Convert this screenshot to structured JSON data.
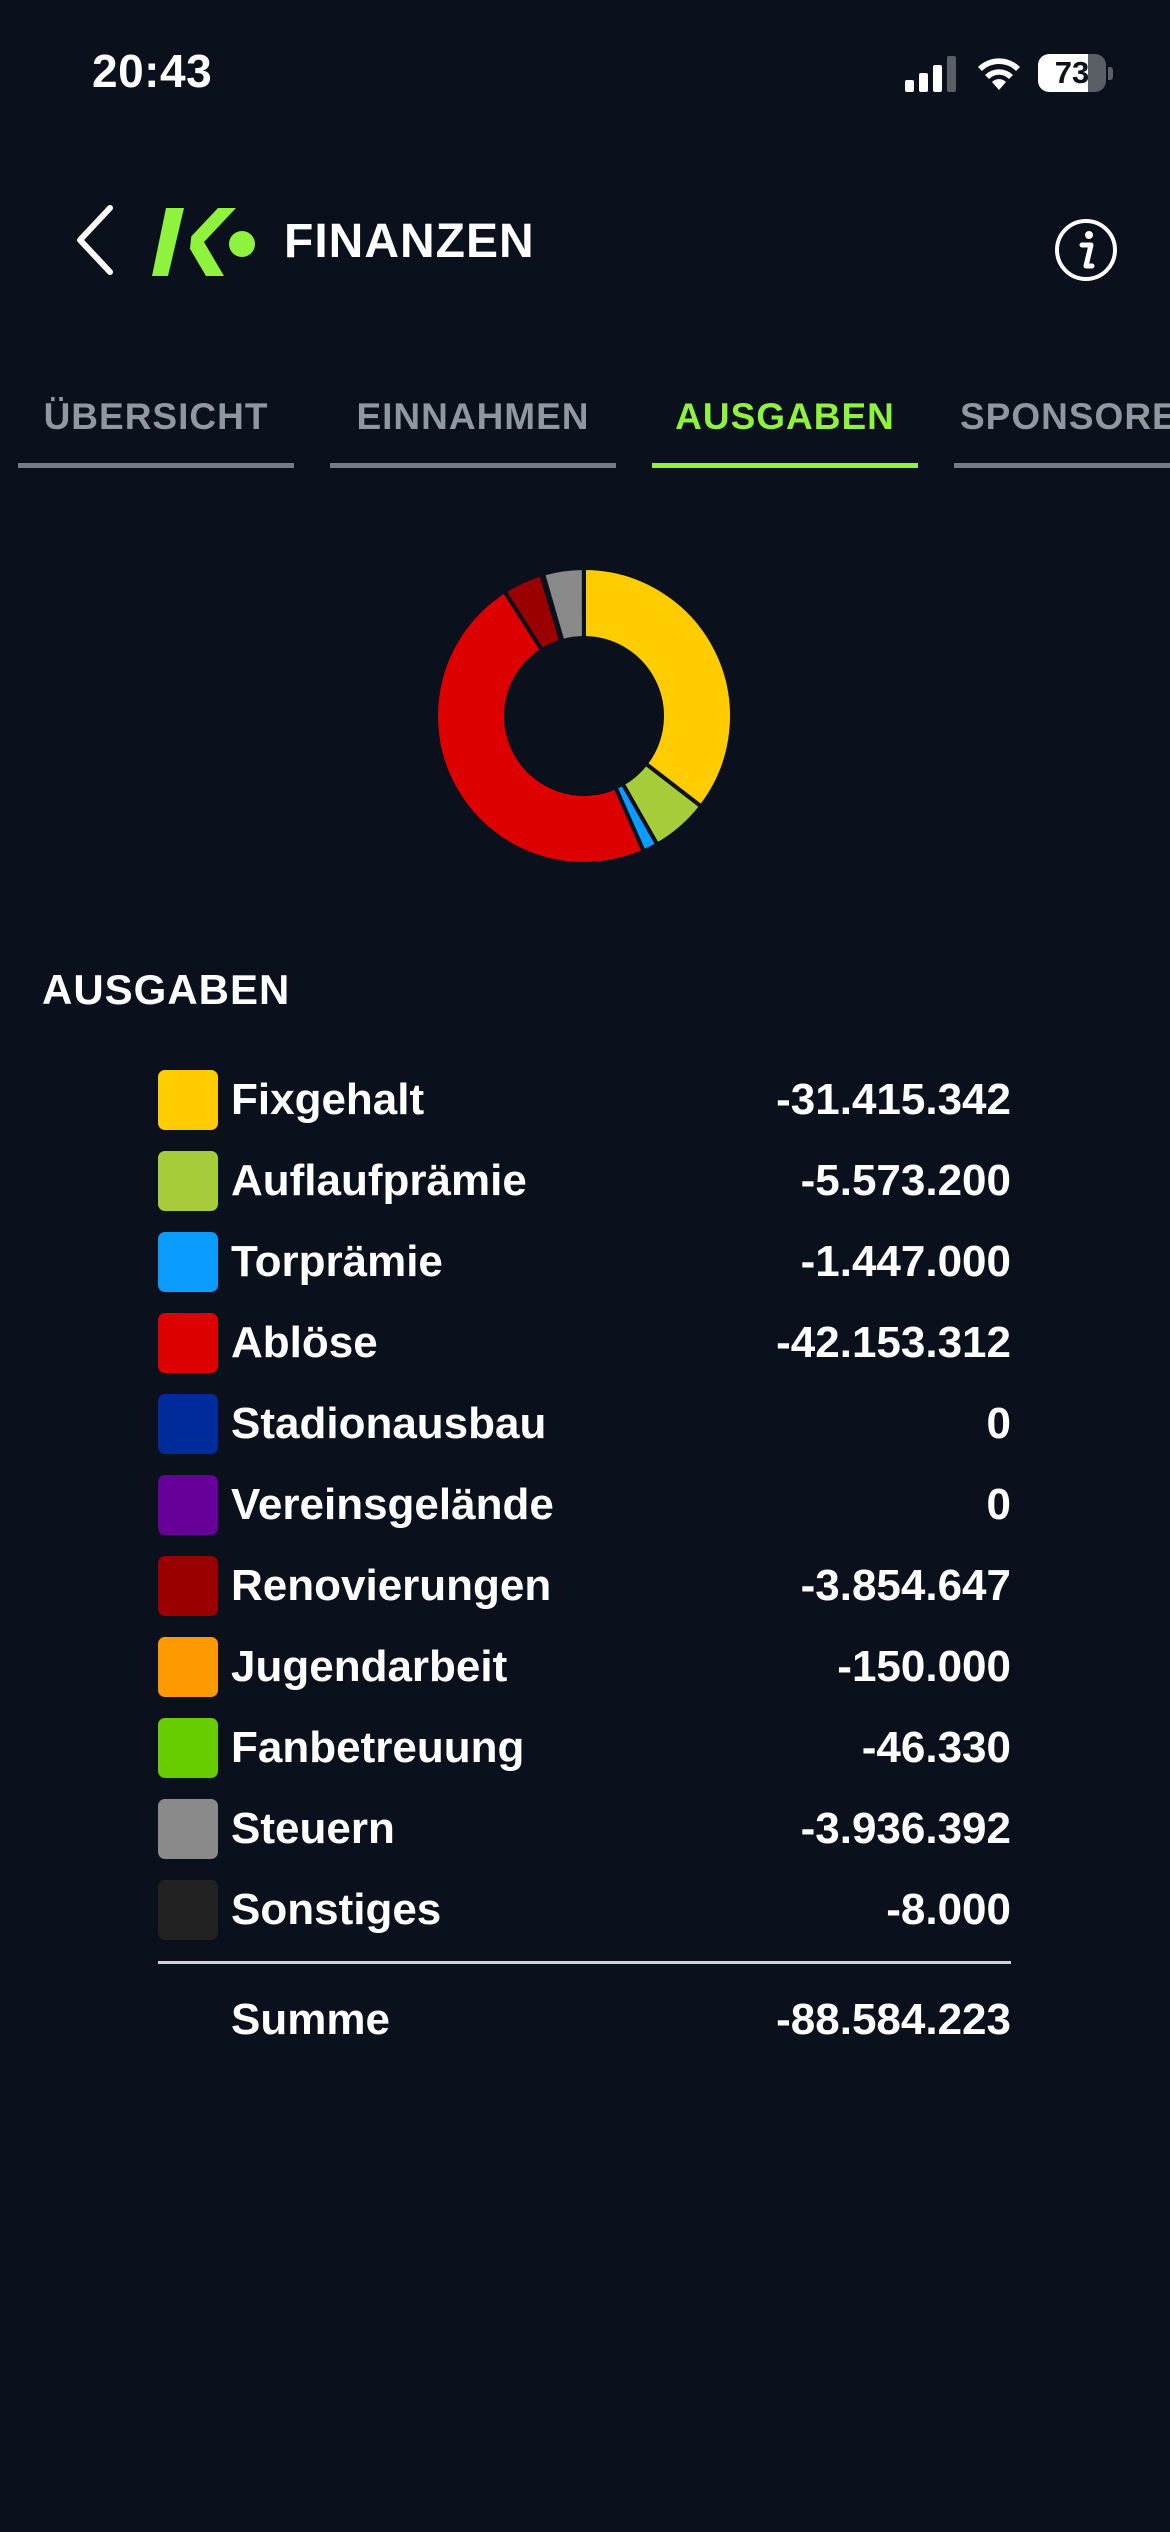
{
  "status_bar": {
    "time": "20:43",
    "battery": "73",
    "battery_level": 0.73,
    "icons": [
      "signal-icon",
      "wifi-icon",
      "battery-icon"
    ]
  },
  "header": {
    "title": "FINANZEN",
    "back_icon": "chevron-left-icon",
    "logo": "kickbase-logo",
    "info_icon": "info-icon"
  },
  "tabs": [
    {
      "label": "ÜBERSICHT",
      "active": false
    },
    {
      "label": "EINNAHMEN",
      "active": false
    },
    {
      "label": "AUSGABEN",
      "active": true
    },
    {
      "label": "SPONSOREN",
      "active": false
    }
  ],
  "section": {
    "title": "AUSGABEN"
  },
  "legend": [
    {
      "label": "Fixgehalt",
      "value": "-31.415.342",
      "amount": 31415342,
      "color": "#ffcc00"
    },
    {
      "label": "Auflaufprämie",
      "value": "-5.573.200",
      "amount": 5573200,
      "color": "#a6cc39"
    },
    {
      "label": "Torprämie",
      "value": "-1.447.000",
      "amount": 1447000,
      "color": "#0a9cff"
    },
    {
      "label": "Ablöse",
      "value": "-42.153.312",
      "amount": 42153312,
      "color": "#dd0000"
    },
    {
      "label": "Stadionausbau",
      "value": "0",
      "amount": 0,
      "color": "#002b9a"
    },
    {
      "label": "Vereinsgelände",
      "value": "0",
      "amount": 0,
      "color": "#660099"
    },
    {
      "label": "Renovierungen",
      "value": "-3.854.647",
      "amount": 3854647,
      "color": "#9a0000"
    },
    {
      "label": "Jugendarbeit",
      "value": "-150.000",
      "amount": 150000,
      "color": "#ff9900"
    },
    {
      "label": "Fanbetreuung",
      "value": "-46.330",
      "amount": 46330,
      "color": "#66cc00"
    },
    {
      "label": "Steuern",
      "value": "-3.936.392",
      "amount": 3936392,
      "color": "#8a8a8a"
    },
    {
      "label": "Sonstiges",
      "value": "-8.000",
      "amount": 8000,
      "color": "#222222"
    }
  ],
  "total": {
    "label": "Summe",
    "value": "-88.584.223"
  },
  "colors": {
    "background": "#0a111c",
    "accent": "#8ff23d",
    "tab_inactive": "#9097a0"
  }
}
